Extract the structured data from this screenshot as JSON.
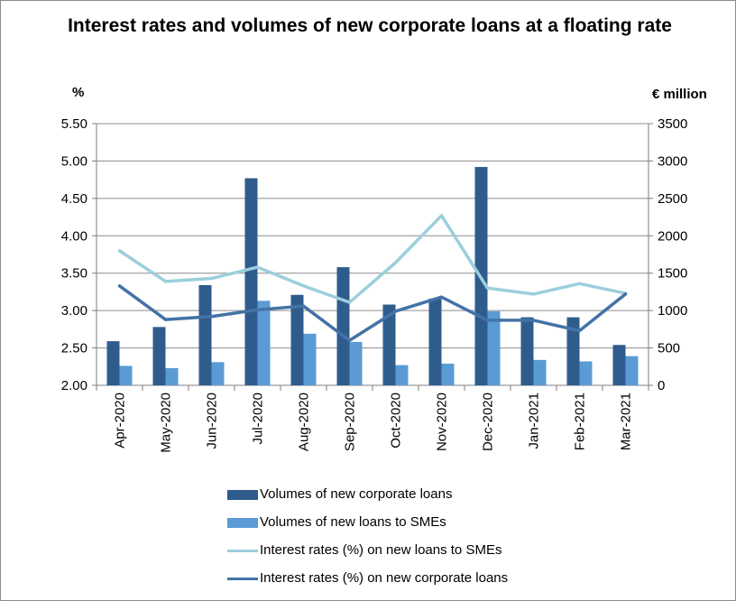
{
  "title": "Interest rates and volumes of new corporate loans at a floating rate",
  "left_axis_unit": "%",
  "right_axis_unit": "€ million",
  "colors": {
    "corporate_volume": "#2e5c8d",
    "sme_volume": "#5b9bd5",
    "sme_rate": "#9ccfdc",
    "corporate_rate": "#4373a6",
    "grid": "#8c8c8c",
    "axis": "#7f7f7f"
  },
  "legend": [
    {
      "label": "Volumes of new corporate loans",
      "kind": "bar",
      "color_key": "corporate_volume"
    },
    {
      "label": "Volumes of new loans to SMEs",
      "kind": "bar",
      "color_key": "sme_volume"
    },
    {
      "label": "Interest rates (%) on new loans to SMEs",
      "kind": "line",
      "color_key": "sme_rate"
    },
    {
      "label": "Interest rates (%) on new corporate loans",
      "kind": "line",
      "color_key": "corporate_rate"
    }
  ],
  "chart_data": {
    "type": "bar",
    "title": "Interest rates and volumes of new corporate loans at a floating rate",
    "categories": [
      "Apr-2020",
      "May-2020",
      "Jun-2020",
      "Jul-2020",
      "Aug-2020",
      "Sep-2020",
      "Oct-2020",
      "Nov-2020",
      "Dec-2020",
      "Jan-2021",
      "Feb-2021",
      "Mar-2021"
    ],
    "left_axis": {
      "label": "%",
      "ylim": [
        2.0,
        5.5
      ],
      "ticks": [
        "2.00",
        "2.50",
        "3.00",
        "3.50",
        "4.00",
        "4.50",
        "5.00",
        "5.50"
      ]
    },
    "right_axis": {
      "label": "€ million",
      "ylim": [
        0,
        3500
      ],
      "ticks": [
        "0",
        "500",
        "1000",
        "1500",
        "2000",
        "2500",
        "3000",
        "3500"
      ]
    },
    "grid": true,
    "legend_position": "bottom",
    "series": [
      {
        "name": "Volumes of new corporate loans",
        "type": "bar",
        "axis": "right",
        "values": [
          590,
          780,
          1340,
          2770,
          1210,
          1580,
          1080,
          1160,
          2920,
          910,
          910,
          540
        ]
      },
      {
        "name": "Volumes of new loans to SMEs",
        "type": "bar",
        "axis": "right",
        "values": [
          260,
          230,
          310,
          1130,
          690,
          580,
          270,
          290,
          990,
          340,
          320,
          390
        ]
      },
      {
        "name": "Interest rates (%) on new loans to SMEs",
        "type": "line",
        "axis": "left",
        "values": [
          3.8,
          3.39,
          3.43,
          3.58,
          3.33,
          3.11,
          3.64,
          4.27,
          3.3,
          3.22,
          3.36,
          3.23
        ]
      },
      {
        "name": "Interest rates (%) on new corporate loans",
        "type": "line",
        "axis": "left",
        "values": [
          3.33,
          2.88,
          2.92,
          3.01,
          3.06,
          2.6,
          2.99,
          3.18,
          2.87,
          2.87,
          2.73,
          3.22
        ]
      }
    ]
  }
}
